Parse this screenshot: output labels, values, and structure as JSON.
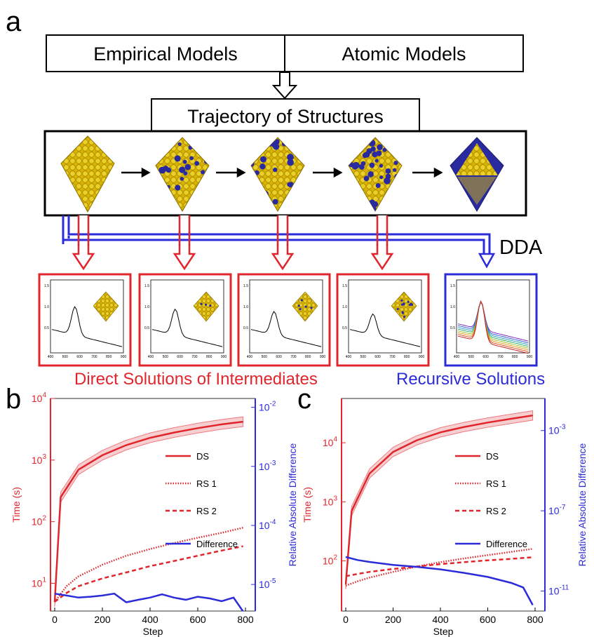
{
  "panel_labels": {
    "a": "a",
    "b": "b",
    "c": "c"
  },
  "diagram": {
    "model_boxes": [
      "Empirical Models",
      "Atomic Models"
    ],
    "trajectory_title": "Trajectory of Structures",
    "method_label": "DDA",
    "direct_caption": "Direct Solutions of Intermediates",
    "recursive_caption": "Recursive Solutions",
    "colors": {
      "direct": "#e0262c",
      "recursive": "#2b2bd9",
      "gold": "#d4b200",
      "navy": "#2a2a9e"
    },
    "inset_x_ticks": [
      "400",
      "500",
      "600",
      "700",
      "800",
      "900"
    ],
    "inset_y_ticks": [
      "1.5",
      "1.0",
      "0.5"
    ]
  },
  "chart_data": [
    {
      "panel": "b",
      "type": "line",
      "xlabel": "Step",
      "ylabel": "Time (s)",
      "y2label": "Relative Absolute Difference",
      "xlim": [
        0,
        800
      ],
      "x_ticks": [
        0,
        200,
        400,
        600,
        800
      ],
      "y_scale": "log",
      "y_ticks": [
        "10^1",
        "10^2",
        "10^3",
        "10^4"
      ],
      "y2_scale": "log",
      "y2_ticks": [
        "10^-5",
        "10^-4",
        "10^-3",
        "10^-2"
      ],
      "legend_position": "right",
      "series": [
        {
          "name": "DS",
          "axis": "left",
          "style": "solid",
          "band": true,
          "x": [
            0,
            25,
            100,
            200,
            300,
            400,
            500,
            600,
            700,
            790
          ],
          "y": [
            5,
            250,
            700,
            1200,
            1750,
            2300,
            2800,
            3300,
            3800,
            4200
          ]
        },
        {
          "name": "RS 1",
          "axis": "left",
          "style": "dotted",
          "x": [
            0,
            50,
            100,
            200,
            300,
            400,
            500,
            600,
            700,
            790
          ],
          "y": [
            5,
            9,
            13,
            20,
            28,
            36,
            45,
            55,
            66,
            80
          ]
        },
        {
          "name": "RS 2",
          "axis": "left",
          "style": "dashed",
          "x": [
            0,
            50,
            100,
            200,
            300,
            400,
            500,
            600,
            700,
            790
          ],
          "y": [
            5,
            7,
            9,
            12,
            15,
            19,
            23,
            28,
            34,
            40
          ]
        },
        {
          "name": "Difference",
          "axis": "right",
          "style": "solid",
          "x": [
            0,
            50,
            100,
            150,
            200,
            250,
            300,
            350,
            400,
            450,
            500,
            550,
            600,
            650,
            700,
            750,
            790
          ],
          "y": [
            7e-06,
            6.5e-06,
            6e-06,
            6.2e-06,
            6.5e-06,
            7e-06,
            5e-06,
            5.5e-06,
            6e-06,
            6.8e-06,
            6e-06,
            5.5e-06,
            6.2e-06,
            5.8e-06,
            5.2e-06,
            6e-06,
            3.5e-06
          ]
        }
      ]
    },
    {
      "panel": "c",
      "type": "line",
      "xlabel": "Step",
      "ylabel": "Time (s)",
      "y2label": "Relative Absolute Difference",
      "xlim": [
        0,
        800
      ],
      "x_ticks": [
        0,
        200,
        400,
        600,
        800
      ],
      "y_scale": "log",
      "y_ticks": [
        "10^2",
        "10^3",
        "10^4"
      ],
      "y2_scale": "log",
      "y2_ticks": [
        "10^-11",
        "10^-7",
        "10^-3"
      ],
      "legend_position": "right",
      "series": [
        {
          "name": "DS",
          "axis": "left",
          "style": "solid",
          "band": true,
          "x": [
            0,
            25,
            100,
            200,
            300,
            400,
            500,
            600,
            700,
            790
          ],
          "y": [
            40,
            700,
            3000,
            7000,
            11000,
            15000,
            18500,
            22000,
            25500,
            29000
          ]
        },
        {
          "name": "RS 1",
          "axis": "left",
          "style": "dotted",
          "x": [
            0,
            50,
            100,
            200,
            300,
            400,
            500,
            600,
            700,
            790
          ],
          "y": [
            38,
            45,
            52,
            65,
            80,
            95,
            110,
            125,
            142,
            160
          ]
        },
        {
          "name": "RS 2",
          "axis": "left",
          "style": "dashed",
          "x": [
            0,
            50,
            100,
            200,
            300,
            400,
            500,
            600,
            700,
            790
          ],
          "y": [
            55,
            60,
            65,
            73,
            80,
            88,
            95,
            102,
            108,
            115
          ]
        },
        {
          "name": "Difference",
          "axis": "right",
          "style": "solid",
          "x": [
            0,
            50,
            100,
            200,
            300,
            400,
            500,
            600,
            700,
            750,
            790
          ],
          "y": [
            5e-10,
            3.5e-10,
            2.8e-10,
            2e-10,
            1.6e-10,
            1.2e-10,
            8e-11,
            5e-11,
            2.5e-11,
            1.5e-11,
            2e-12
          ]
        }
      ]
    }
  ]
}
